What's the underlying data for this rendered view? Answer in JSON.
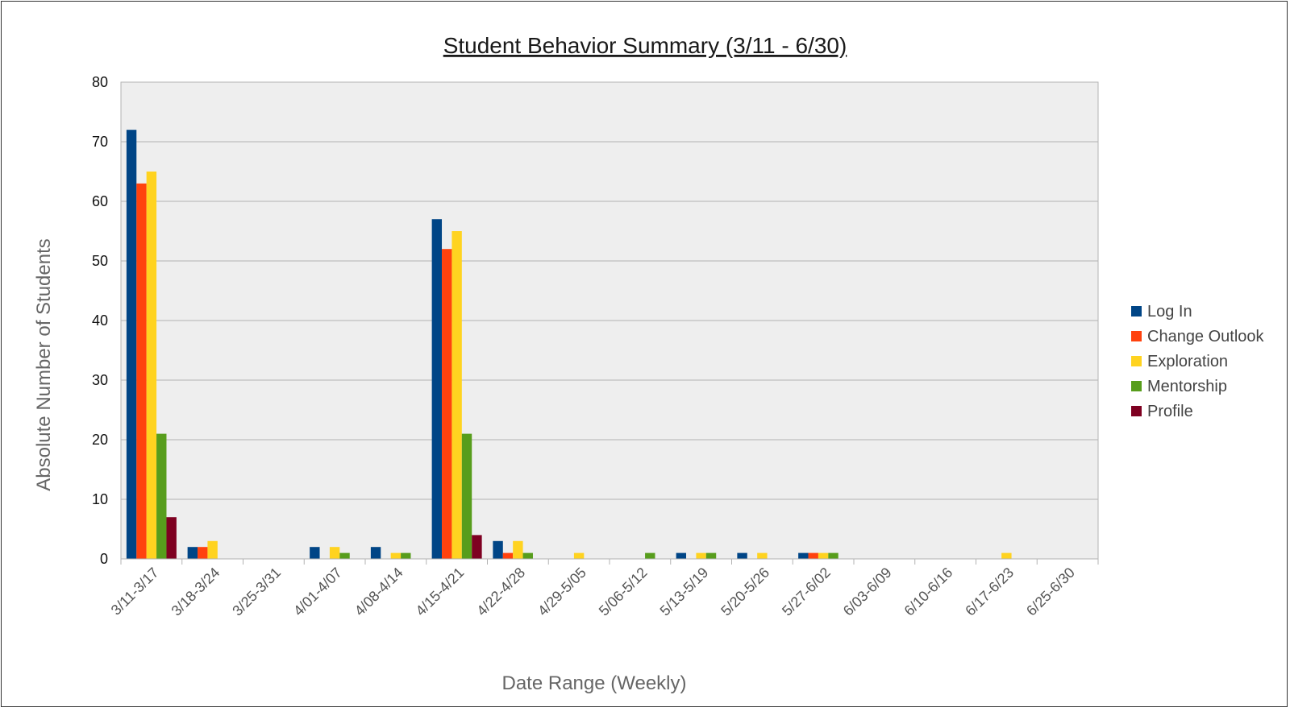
{
  "chart_data": {
    "type": "bar",
    "title": "Student Behavior Summary (3/11 - 6/30)",
    "xlabel": "Date Range (Weekly)",
    "ylabel": "Absolute Number of Students",
    "ylim": [
      0,
      80
    ],
    "yticks": [
      0,
      10,
      20,
      30,
      40,
      50,
      60,
      70,
      80
    ],
    "grid": true,
    "legend_position": "right",
    "categories": [
      "3/11-3/17",
      "3/18-3/24",
      "3/25-3/31",
      "4/01-4/07",
      "4/08-4/14",
      "4/15-4/21",
      "4/22-4/28",
      "4/29-5/05",
      "5/06-5/12",
      "5/13-5/19",
      "5/20-5/26",
      "5/27-6/02",
      "6/03-6/09",
      "6/10-6/16",
      "6/17-6/23",
      "6/25-6/30"
    ],
    "series": [
      {
        "name": "Log In",
        "color": "#004586",
        "values": [
          72,
          2,
          0,
          2,
          2,
          57,
          3,
          0,
          0,
          1,
          1,
          1,
          0,
          0,
          0,
          0
        ]
      },
      {
        "name": "Change Outlook",
        "color": "#ff420e",
        "values": [
          63,
          2,
          0,
          0,
          0,
          52,
          1,
          0,
          0,
          0,
          0,
          1,
          0,
          0,
          0,
          0
        ]
      },
      {
        "name": "Exploration",
        "color": "#ffd320",
        "values": [
          65,
          3,
          0,
          2,
          1,
          55,
          3,
          1,
          0,
          1,
          1,
          1,
          0,
          0,
          1,
          0
        ]
      },
      {
        "name": "Mentorship",
        "color": "#579d1c",
        "values": [
          21,
          0,
          0,
          1,
          1,
          21,
          1,
          0,
          1,
          1,
          0,
          1,
          0,
          0,
          0,
          0
        ]
      },
      {
        "name": "Profile",
        "color": "#7e0021",
        "values": [
          7,
          0,
          0,
          0,
          0,
          4,
          0,
          0,
          0,
          0,
          0,
          0,
          0,
          0,
          0,
          0
        ]
      }
    ]
  }
}
